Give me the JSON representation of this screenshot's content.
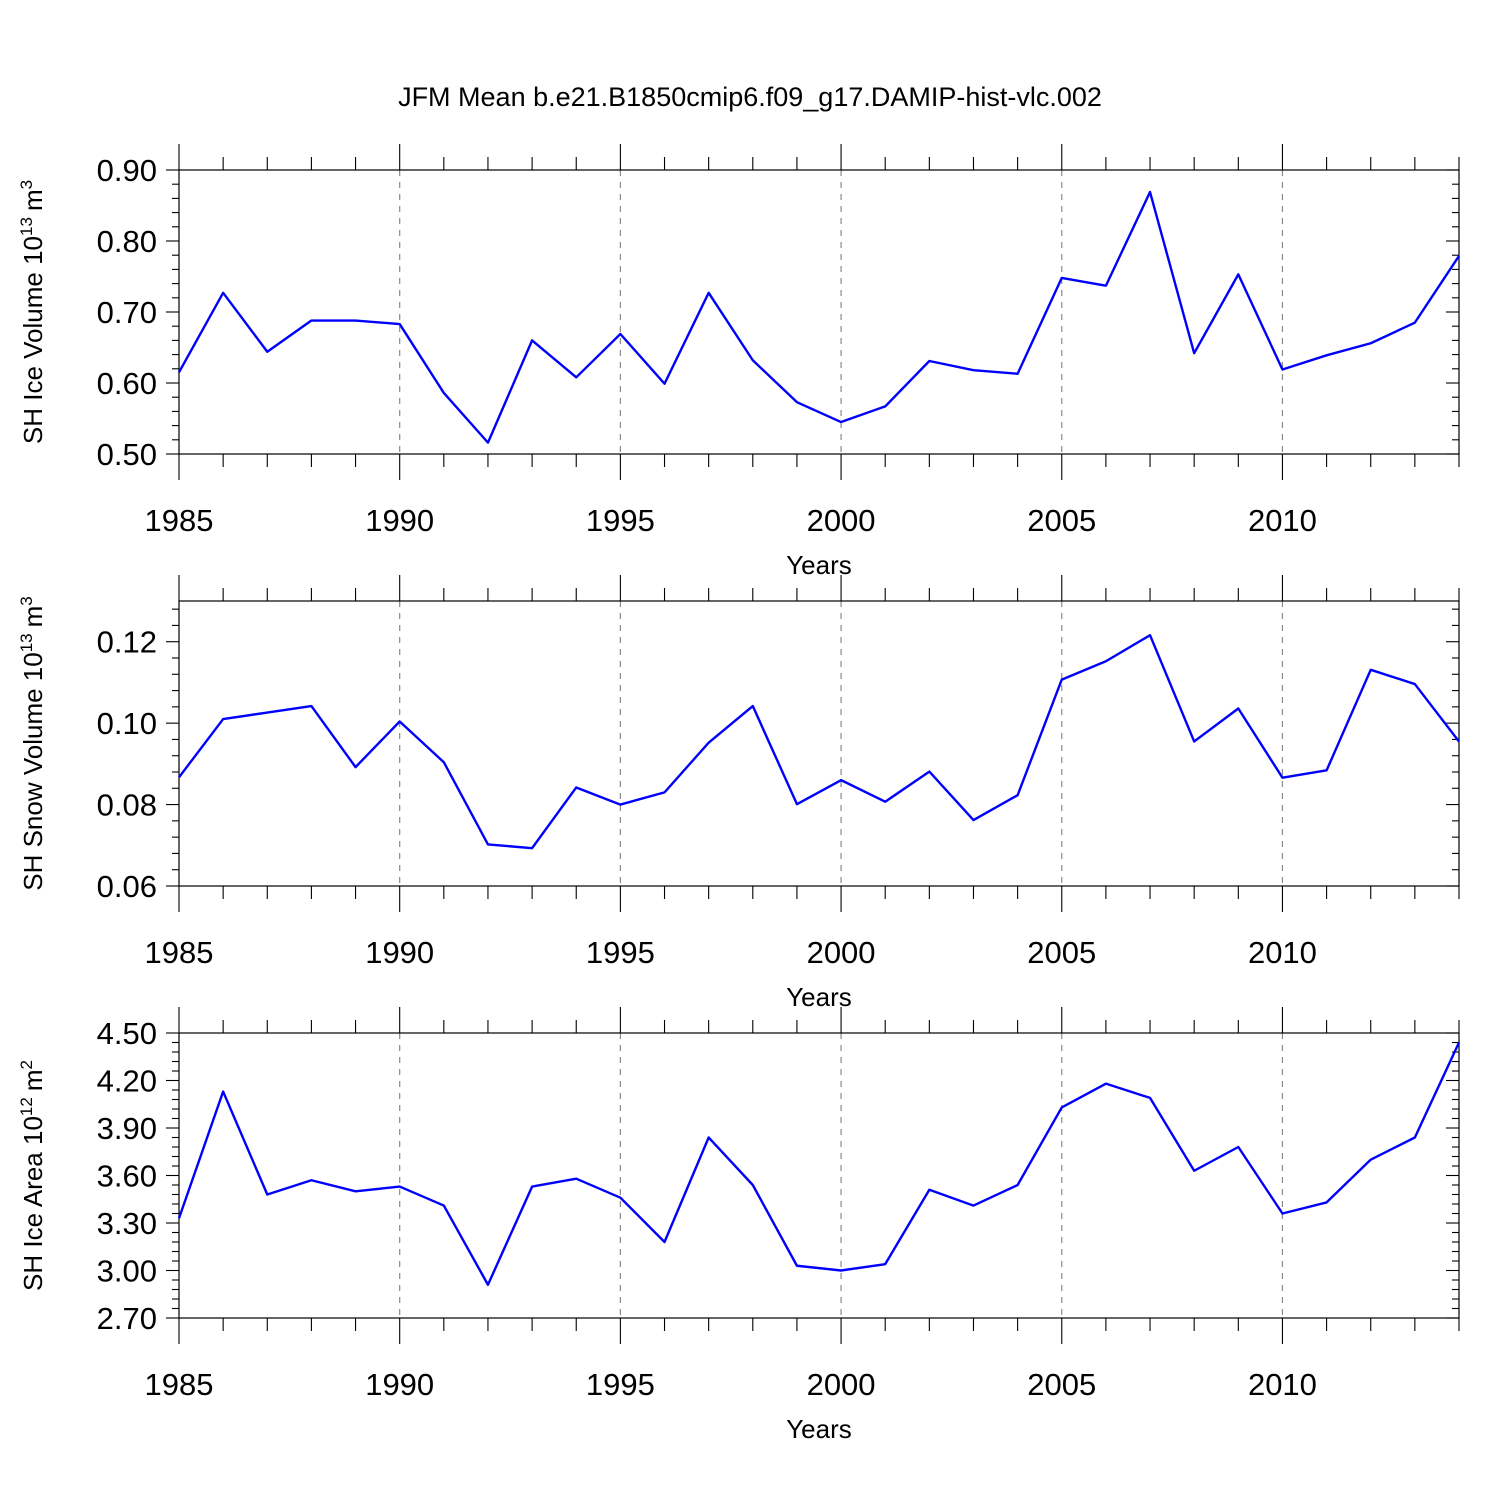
{
  "chart_data": {
    "title": "JFM Mean b.e21.B1850cmip6.f09_g17.DAMIP-hist-vlc.002",
    "line_color": "#0000ff",
    "panels": [
      {
        "type": "line",
        "ylabel": "SH Ice Volume 10",
        "ylabel_exp": "13",
        "ylabel_unit": "m",
        "ylabel_unit_exp": "3",
        "xlabel": "Years",
        "xlim": [
          1985,
          2014
        ],
        "ylim": [
          0.5,
          0.9
        ],
        "yticks": [
          "0.90",
          "0.80",
          "0.70",
          "0.60",
          "0.50"
        ],
        "ytick_values": [
          0.9,
          0.8,
          0.7,
          0.6,
          0.5
        ],
        "xticks": [
          "1985",
          "1990",
          "1995",
          "2000",
          "2005",
          "2010"
        ],
        "xtick_values": [
          1985,
          1990,
          1995,
          2000,
          2005,
          2010
        ],
        "x": [
          1985,
          1986,
          1987,
          1988,
          1989,
          1990,
          1991,
          1992,
          1993,
          1994,
          1995,
          1996,
          1997,
          1998,
          1999,
          2000,
          2001,
          2002,
          2003,
          2004,
          2005,
          2006,
          2007,
          2008,
          2009,
          2010,
          2011,
          2012,
          2013,
          2014
        ],
        "values": [
          0.615,
          0.727,
          0.644,
          0.688,
          0.688,
          0.683,
          0.586,
          0.516,
          0.66,
          0.608,
          0.669,
          0.599,
          0.727,
          0.632,
          0.573,
          0.545,
          0.567,
          0.631,
          0.618,
          0.613,
          0.748,
          0.737,
          0.869,
          0.642,
          0.753,
          0.619,
          0.639,
          0.656,
          0.685,
          0.779
        ]
      },
      {
        "type": "line",
        "ylabel": "SH Snow Volume 10",
        "ylabel_exp": "13",
        "ylabel_unit": "m",
        "ylabel_unit_exp": "3",
        "xlabel": "Years",
        "xlim": [
          1985,
          2014
        ],
        "ylim": [
          0.06,
          0.13
        ],
        "yticks": [
          "0.12",
          "0.10",
          "0.08",
          "0.06"
        ],
        "ytick_values": [
          0.12,
          0.1,
          0.08,
          0.06
        ],
        "xticks": [
          "1985",
          "1990",
          "1995",
          "2000",
          "2005",
          "2010"
        ],
        "xtick_values": [
          1985,
          1990,
          1995,
          2000,
          2005,
          2010
        ],
        "x": [
          1985,
          1986,
          1987,
          1988,
          1989,
          1990,
          1991,
          1992,
          1993,
          1994,
          1995,
          1996,
          1997,
          1998,
          1999,
          2000,
          2001,
          2002,
          2003,
          2004,
          2005,
          2006,
          2007,
          2008,
          2009,
          2010,
          2011,
          2012,
          2013,
          2014
        ],
        "values": [
          0.0867,
          0.101,
          0.1026,
          0.1042,
          0.0892,
          0.1004,
          0.0904,
          0.0702,
          0.0693,
          0.0842,
          0.08,
          0.083,
          0.0952,
          0.1042,
          0.0801,
          0.086,
          0.0807,
          0.0881,
          0.0762,
          0.0823,
          0.1107,
          0.1152,
          0.1216,
          0.0955,
          0.1036,
          0.0866,
          0.0884,
          0.1131,
          0.1096,
          0.0955
        ]
      },
      {
        "type": "line",
        "ylabel": "SH Ice Area 10",
        "ylabel_exp": "12",
        "ylabel_unit": "m",
        "ylabel_unit_exp": "2",
        "xlabel": "Years",
        "xlim": [
          1985,
          2014
        ],
        "ylim": [
          2.7,
          4.5
        ],
        "yticks": [
          "4.50",
          "4.20",
          "3.90",
          "3.60",
          "3.30",
          "3.00",
          "2.70"
        ],
        "ytick_values": [
          4.5,
          4.2,
          3.9,
          3.6,
          3.3,
          3.0,
          2.7
        ],
        "xticks": [
          "1985",
          "1990",
          "1995",
          "2000",
          "2005",
          "2010"
        ],
        "xtick_values": [
          1985,
          1990,
          1995,
          2000,
          2005,
          2010
        ],
        "x": [
          1985,
          1986,
          1987,
          1988,
          1989,
          1990,
          1991,
          1992,
          1993,
          1994,
          1995,
          1996,
          1997,
          1998,
          1999,
          2000,
          2001,
          2002,
          2003,
          2004,
          2005,
          2006,
          2007,
          2008,
          2009,
          2010,
          2011,
          2012,
          2013,
          2014
        ],
        "values": [
          3.33,
          4.13,
          3.48,
          3.57,
          3.5,
          3.53,
          3.41,
          2.91,
          3.53,
          3.58,
          3.46,
          3.18,
          3.84,
          3.54,
          3.03,
          3.0,
          3.04,
          3.51,
          3.41,
          3.54,
          4.03,
          4.18,
          4.09,
          3.63,
          3.78,
          3.36,
          3.43,
          3.7,
          3.84,
          4.44
        ]
      }
    ]
  }
}
